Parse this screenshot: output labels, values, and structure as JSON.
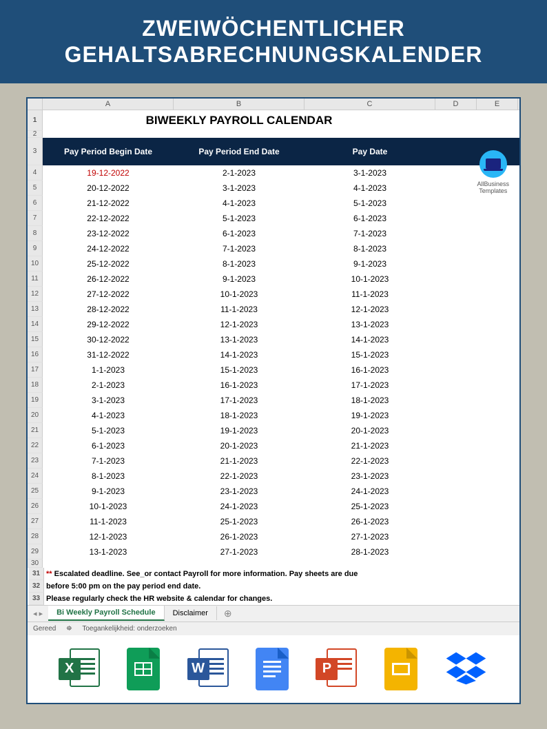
{
  "banner": {
    "line1": "ZWEIWÖCHENTLICHER",
    "line2": "GEHALTSABRECHNUNGSKALENDER"
  },
  "spreadsheet": {
    "title": "BIWEEKLY PAYROLL CALENDAR",
    "columns": [
      "A",
      "B",
      "C",
      "D",
      "E"
    ],
    "headers": {
      "col_a": "Pay Period Begin Date",
      "col_b": "Pay Period End Date",
      "col_c": "Pay Date"
    },
    "header_bg": "#0b2545",
    "header_fg": "#ffffff",
    "rows": [
      {
        "num": 4,
        "a": "19-12-2022",
        "b": "2-1-2023",
        "c": "3-1-2023",
        "a_color": "#c00000"
      },
      {
        "num": 5,
        "a": "20-12-2022",
        "b": "3-1-2023",
        "c": "4-1-2023"
      },
      {
        "num": 6,
        "a": "21-12-2022",
        "b": "4-1-2023",
        "c": "5-1-2023"
      },
      {
        "num": 7,
        "a": "22-12-2022",
        "b": "5-1-2023",
        "c": "6-1-2023"
      },
      {
        "num": 8,
        "a": "23-12-2022",
        "b": "6-1-2023",
        "c": "7-1-2023"
      },
      {
        "num": 9,
        "a": "24-12-2022",
        "b": "7-1-2023",
        "c": "8-1-2023"
      },
      {
        "num": 10,
        "a": "25-12-2022",
        "b": "8-1-2023",
        "c": "9-1-2023"
      },
      {
        "num": 11,
        "a": "26-12-2022",
        "b": "9-1-2023",
        "c": "10-1-2023"
      },
      {
        "num": 12,
        "a": "27-12-2022",
        "b": "10-1-2023",
        "c": "11-1-2023"
      },
      {
        "num": 13,
        "a": "28-12-2022",
        "b": "11-1-2023",
        "c": "12-1-2023"
      },
      {
        "num": 14,
        "a": "29-12-2022",
        "b": "12-1-2023",
        "c": "13-1-2023"
      },
      {
        "num": 15,
        "a": "30-12-2022",
        "b": "13-1-2023",
        "c": "14-1-2023"
      },
      {
        "num": 16,
        "a": "31-12-2022",
        "b": "14-1-2023",
        "c": "15-1-2023"
      },
      {
        "num": 17,
        "a": "1-1-2023",
        "b": "15-1-2023",
        "c": "16-1-2023"
      },
      {
        "num": 18,
        "a": "2-1-2023",
        "b": "16-1-2023",
        "c": "17-1-2023"
      },
      {
        "num": 19,
        "a": "3-1-2023",
        "b": "17-1-2023",
        "c": "18-1-2023"
      },
      {
        "num": 20,
        "a": "4-1-2023",
        "b": "18-1-2023",
        "c": "19-1-2023"
      },
      {
        "num": 21,
        "a": "5-1-2023",
        "b": "19-1-2023",
        "c": "20-1-2023"
      },
      {
        "num": 22,
        "a": "6-1-2023",
        "b": "20-1-2023",
        "c": "21-1-2023"
      },
      {
        "num": 23,
        "a": "7-1-2023",
        "b": "21-1-2023",
        "c": "22-1-2023"
      },
      {
        "num": 24,
        "a": "8-1-2023",
        "b": "22-1-2023",
        "c": "23-1-2023"
      },
      {
        "num": 25,
        "a": "9-1-2023",
        "b": "23-1-2023",
        "c": "24-1-2023"
      },
      {
        "num": 26,
        "a": "10-1-2023",
        "b": "24-1-2023",
        "c": "25-1-2023"
      },
      {
        "num": 27,
        "a": "11-1-2023",
        "b": "25-1-2023",
        "c": "26-1-2023"
      },
      {
        "num": 28,
        "a": "12-1-2023",
        "b": "26-1-2023",
        "c": "27-1-2023"
      },
      {
        "num": 29,
        "a": "13-1-2023",
        "b": "27-1-2023",
        "c": "28-1-2023"
      }
    ],
    "notes": {
      "stars": "**",
      "line1": " Escalated deadline. See_or contact Payroll for more information. Pay sheets are due",
      "line2": "before 5:00 pm on the pay period end date.",
      "line3": "Please regularly check the HR website & calendar for changes."
    },
    "tabs": {
      "tab1": "Bi Weekly Payroll Schedule",
      "tab2": "Disclaimer"
    },
    "status": {
      "ready": "Gereed",
      "accessibility": "Toegankelijkheid: onderzoeken"
    },
    "logo": {
      "line1": "AllBusiness",
      "line2": "Templates"
    }
  },
  "file_icons": {
    "excel_color": "#217346",
    "gsheets_color": "#0f9d58",
    "word_color": "#2b579a",
    "gdocs_color": "#4285f4",
    "ppt_color": "#d24726",
    "gslides_color": "#f4b400",
    "dropbox_color": "#0061ff"
  }
}
